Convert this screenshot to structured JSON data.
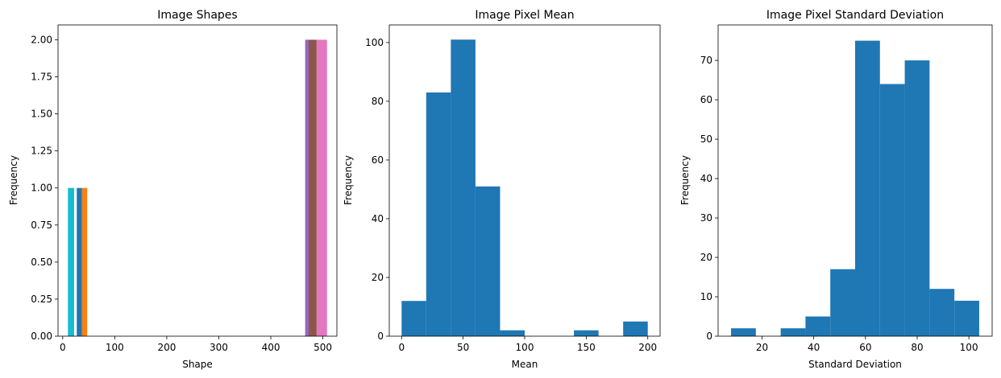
{
  "chart_data": [
    {
      "type": "bar",
      "title": "Image Shapes",
      "xlabel": "Shape",
      "ylabel": "Frequency",
      "xlim": [
        -9,
        527
      ],
      "ylim": [
        0,
        2.1
      ],
      "xticks": [
        0,
        100,
        200,
        300,
        400,
        500
      ],
      "yticks": [
        0.0,
        0.25,
        0.5,
        0.75,
        1.0,
        1.25,
        1.5,
        1.75,
        2.0
      ],
      "ytick_labels": [
        "0.00",
        "0.25",
        "0.50",
        "0.75",
        "1.00",
        "1.25",
        "1.50",
        "1.75",
        "2.00"
      ],
      "grid": false,
      "series": [
        {
          "color": "#ff7f0e",
          "bars": [
            {
              "x0": 37,
              "x1": 47,
              "y": 1
            }
          ]
        },
        {
          "color": "#1f77b4",
          "bars": [
            {
              "x0": 27,
              "x1": 37,
              "y": 1
            }
          ]
        },
        {
          "color": "#17becf",
          "bars": [
            {
              "x0": 10,
              "x1": 22,
              "y": 1
            }
          ]
        },
        {
          "color": "#9467bd",
          "bars": [
            {
              "x0": 466,
              "x1": 474,
              "y": 2
            }
          ]
        },
        {
          "color": "#e377c2",
          "bars": [
            {
              "x0": 488,
              "x1": 508,
              "y": 2
            }
          ]
        },
        {
          "color": "#8c564b",
          "bars": [
            {
              "x0": 473,
              "x1": 488,
              "y": 2
            }
          ]
        }
      ]
    },
    {
      "type": "bar",
      "title": "Image Pixel Mean",
      "xlabel": "Mean",
      "ylabel": "Frequency",
      "xlim": [
        -10,
        210
      ],
      "ylim": [
        0,
        106
      ],
      "xticks": [
        0,
        50,
        100,
        150,
        200
      ],
      "yticks": [
        0,
        20,
        40,
        60,
        80,
        100
      ],
      "grid": false,
      "color": "#1f77b4",
      "bin_edges": [
        0,
        20,
        40,
        60,
        80,
        100,
        120,
        140,
        160,
        180,
        200
      ],
      "values": [
        12,
        83,
        101,
        51,
        2,
        0,
        0,
        2,
        0,
        5
      ]
    },
    {
      "type": "bar",
      "title": "Image Pixel Standard Deviation",
      "xlabel": "Standard Deviation",
      "ylabel": "Frequency",
      "xlim": [
        3,
        109
      ],
      "ylim": [
        0,
        79
      ],
      "xticks": [
        20,
        40,
        60,
        80,
        100
      ],
      "yticks": [
        0,
        10,
        20,
        30,
        40,
        50,
        60,
        70
      ],
      "grid": false,
      "color": "#1f77b4",
      "bin_edges": [
        8,
        17.6,
        27.2,
        36.8,
        46.4,
        56,
        65.6,
        75.2,
        84.8,
        94.4,
        104
      ],
      "values": [
        2,
        0,
        2,
        5,
        17,
        75,
        64,
        70,
        12,
        9
      ]
    }
  ]
}
